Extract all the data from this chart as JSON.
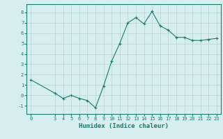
{
  "x": [
    0,
    3,
    4,
    5,
    6,
    7,
    8,
    9,
    10,
    11,
    12,
    13,
    14,
    15,
    16,
    17,
    18,
    19,
    20,
    21,
    22,
    23
  ],
  "y": [
    1.5,
    0.2,
    -0.3,
    0.0,
    -0.3,
    -0.5,
    -1.2,
    0.9,
    3.3,
    5.0,
    7.0,
    7.5,
    6.9,
    8.1,
    6.7,
    6.3,
    5.6,
    5.6,
    5.3,
    5.3,
    5.4,
    5.5
  ],
  "line_color": "#1a7a6e",
  "marker": "+",
  "marker_size": 3,
  "background_color": "#d6eeee",
  "grid_color": "#b8d4d4",
  "xlabel": "Humidex (Indice chaleur)",
  "ylabel": "",
  "xlim": [
    -0.5,
    23.5
  ],
  "ylim": [
    -1.8,
    8.8
  ],
  "xticks": [
    0,
    3,
    4,
    5,
    6,
    7,
    8,
    9,
    10,
    11,
    12,
    13,
    14,
    15,
    16,
    17,
    18,
    19,
    20,
    21,
    22,
    23
  ],
  "yticks": [
    -1,
    0,
    1,
    2,
    3,
    4,
    5,
    6,
    7,
    8
  ],
  "tick_color": "#1a7a6e",
  "label_color": "#1a7a6e",
  "tick_fontsize": 5,
  "xlabel_fontsize": 6.5
}
